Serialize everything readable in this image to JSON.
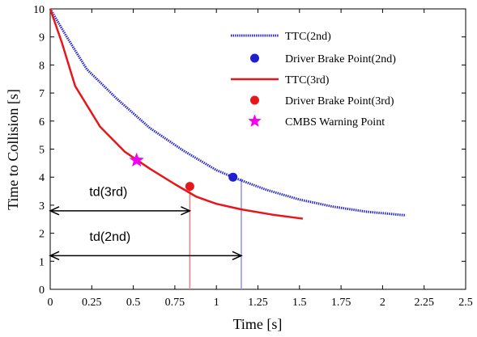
{
  "chart_data": {
    "type": "line",
    "xlabel": "Time [s]",
    "ylabel": "Time to Collision [s]",
    "xlim": [
      0,
      2.5
    ],
    "ylim": [
      0,
      10
    ],
    "xticks": [
      0,
      0.25,
      0.5,
      0.75,
      1,
      1.25,
      1.5,
      1.75,
      2,
      2.25,
      2.5
    ],
    "xtick_labels": [
      "0",
      "0.25",
      "0.5",
      "0.75",
      "1",
      "1.25",
      "1.5",
      "1.75",
      "2",
      "2.25",
      "2.5"
    ],
    "yticks": [
      0,
      1,
      2,
      3,
      4,
      5,
      6,
      7,
      8,
      9,
      10
    ],
    "ytick_labels": [
      "0",
      "1",
      "2",
      "3",
      "4",
      "5",
      "6",
      "7",
      "8",
      "9",
      "10"
    ],
    "grid": false,
    "legend_position": "top-right",
    "series": [
      {
        "name": "TTC(2nd)",
        "style": "dotted",
        "color": "#1f1fd0",
        "x": [
          0,
          0.1,
          0.22,
          0.4,
          0.6,
          0.8,
          1.0,
          1.12,
          1.3,
          1.5,
          1.7,
          1.9,
          2.1,
          2.14
        ],
        "y": [
          10,
          9.0,
          7.85,
          6.8,
          5.75,
          4.95,
          4.25,
          3.95,
          3.55,
          3.2,
          2.95,
          2.77,
          2.66,
          2.64
        ]
      },
      {
        "name": "Driver Brake Point(2nd)",
        "marker": "circle",
        "color": "#1f1fd0",
        "x": [
          1.1
        ],
        "y": [
          4.0
        ]
      },
      {
        "name": "TTC(3rd)",
        "style": "solid",
        "color": "#e8161b",
        "x": [
          0,
          0.07,
          0.15,
          0.3,
          0.45,
          0.6,
          0.75,
          0.88,
          1.0,
          1.15,
          1.35,
          1.52
        ],
        "y": [
          10,
          8.8,
          7.25,
          5.8,
          4.9,
          4.3,
          3.75,
          3.3,
          3.05,
          2.85,
          2.65,
          2.52
        ]
      },
      {
        "name": "Driver Brake Point(3rd)",
        "marker": "circle",
        "color": "#e8161b",
        "x": [
          0.84
        ],
        "y": [
          3.67
        ]
      },
      {
        "name": "CMBS Warning Point",
        "marker": "star",
        "color": "#f200f2",
        "x": [
          0.52
        ],
        "y": [
          4.6
        ]
      }
    ],
    "vertical_lines": [
      {
        "x": 0.84,
        "y_from": 0,
        "y_to": 3.67,
        "color": "#f08080"
      },
      {
        "x": 1.15,
        "y_from": 0,
        "y_to": 3.95,
        "color": "#9090ee"
      }
    ],
    "annotations": [
      {
        "label": "td(3rd)",
        "from_x": 0,
        "to_x": 0.84,
        "y": 2.8,
        "label_y": 3.5,
        "label_x": 0.35
      },
      {
        "label": "td(2nd)",
        "from_x": 0,
        "to_x": 1.15,
        "y": 1.2,
        "label_y": 1.9,
        "label_x": 0.36
      }
    ]
  }
}
